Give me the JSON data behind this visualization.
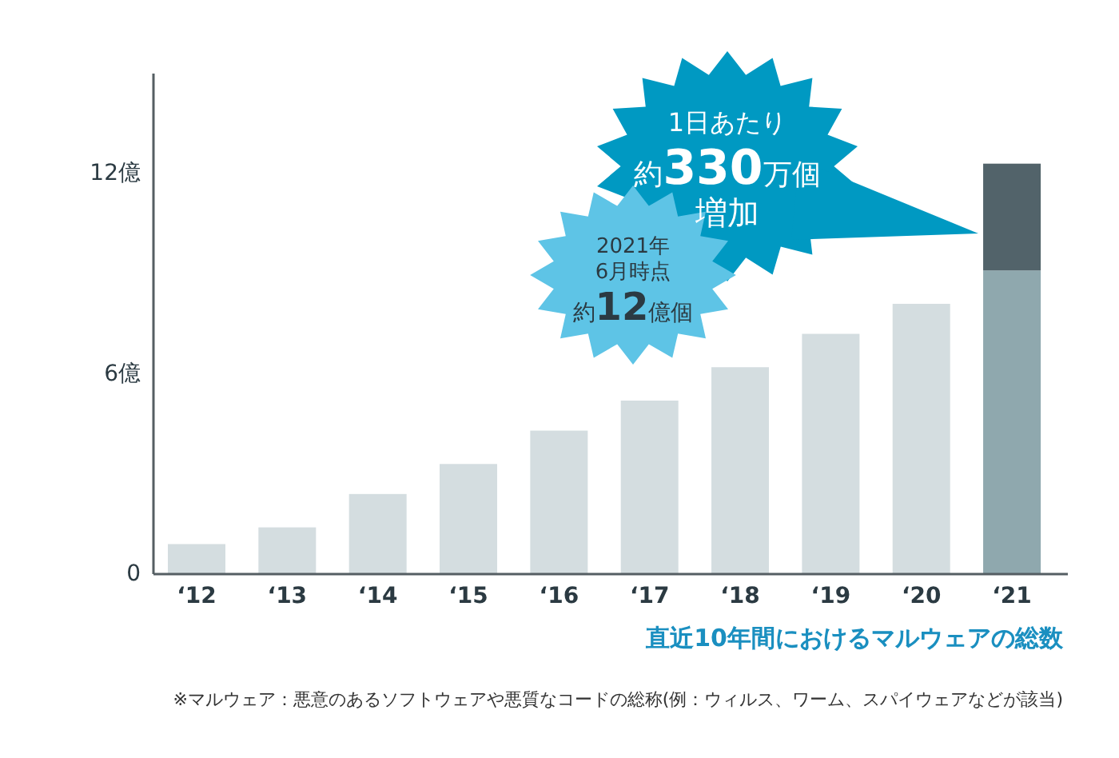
{
  "chart_data": {
    "type": "bar",
    "title": "直近10年間におけるマルウェアの総数",
    "categories": [
      "‘12",
      "‘13",
      "‘14",
      "‘15",
      "‘16",
      "‘17",
      "‘18",
      "‘19",
      "‘20",
      "‘21"
    ],
    "stacked": true,
    "series": [
      {
        "colors": [
          "#d4dde0",
          "#d4dde0",
          "#d4dde0",
          "#d4dde0",
          "#d4dde0",
          "#d4dde0",
          "#d4dde0",
          "#d4dde0",
          "#d4dde0",
          "#8fa8ae"
        ],
        "values": [
          0.9,
          1.4,
          2.4,
          3.3,
          4.3,
          5.2,
          6.2,
          7.2,
          8.1,
          9.1
        ]
      },
      {
        "color": "#52636a",
        "values": [
          null,
          null,
          null,
          null,
          null,
          null,
          null,
          null,
          null,
          3.2
        ]
      }
    ],
    "ylim": [
      0,
      15
    ],
    "yticks": [
      0,
      {
        "value": 6,
        "label": "6億"
      },
      {
        "value": 12,
        "label": "12億"
      }
    ],
    "annotations": [
      "1日あたり",
      "約**330**万個",
      "増加",
      "2021年",
      "6月時点",
      "約**12**億個",
      "※マルウェア：悪意のあるソフトウェアや悪質なコードの総称(例：ウィルス、ワーム、スパイウェアなどが該当)"
    ]
  }
}
